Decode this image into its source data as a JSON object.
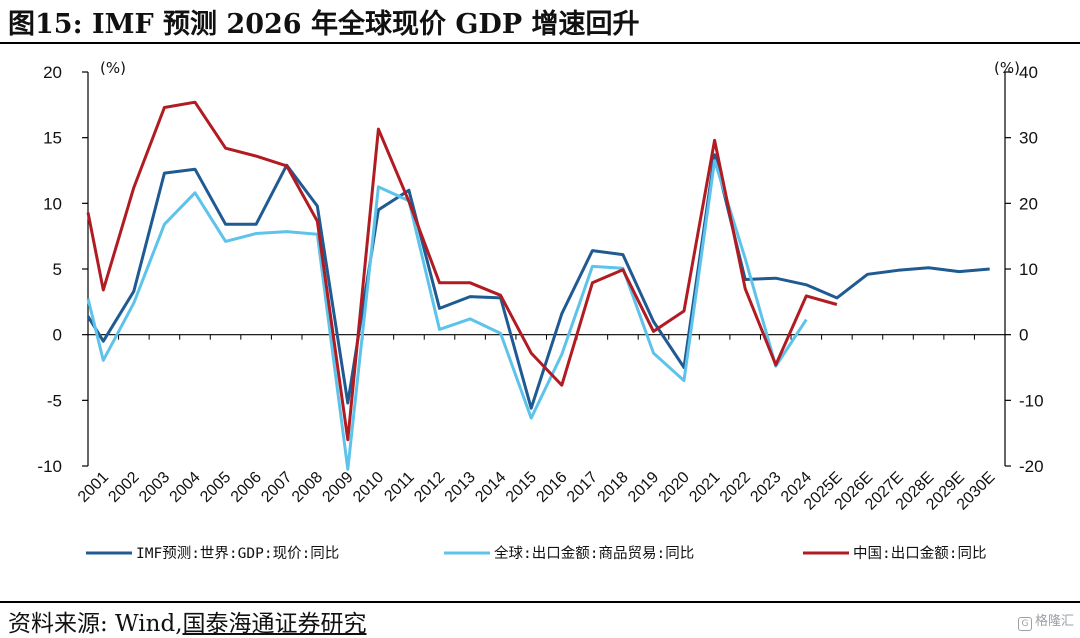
{
  "title": "图15:  IMF 预测 2026 年全球现价 GDP 增速回升",
  "source": {
    "prefix": "资料来源:  Wind,",
    "org": "国泰海通证券研究"
  },
  "watermark": "格隆汇",
  "colors": {
    "imf": "#1f5a92",
    "global": "#5ec3ea",
    "china": "#b01c22"
  },
  "chart_data": {
    "type": "line",
    "x": [
      "2001",
      "2002",
      "2003",
      "2004",
      "2005",
      "2006",
      "2007",
      "2008",
      "2009",
      "2010",
      "2011",
      "2012",
      "2013",
      "2014",
      "2015",
      "2016",
      "2017",
      "2018",
      "2019",
      "2020",
      "2021",
      "2022",
      "2023",
      "2024",
      "2025E",
      "2026E",
      "2027E",
      "2028E",
      "2029E",
      "2030E"
    ],
    "left_axis": {
      "label": "(%)",
      "ylim": [
        -10,
        20
      ],
      "ticks": [
        -10,
        -5,
        0,
        5,
        10,
        15,
        20
      ]
    },
    "right_axis": {
      "label": "(%)",
      "ylim": [
        -20,
        40
      ],
      "ticks": [
        -20,
        -10,
        0,
        10,
        20,
        30,
        40
      ]
    },
    "series": [
      {
        "name": "IMF预测:世界:GDP:现价:同比",
        "axis": "left",
        "color": "#1f5a92",
        "values": [
          -0.5,
          3.3,
          12.3,
          12.6,
          8.4,
          8.4,
          12.9,
          9.8,
          -5.2,
          9.5,
          11.0,
          2.0,
          2.9,
          2.8,
          -5.6,
          1.6,
          6.4,
          6.1,
          1.0,
          -2.5,
          13.7,
          4.2,
          4.3,
          3.8,
          2.8,
          4.6,
          4.9,
          5.1,
          4.8,
          5.0
        ],
        "x_offset_pts": [
          {
            "x": "2001",
            "at_start": 1.4
          }
        ]
      },
      {
        "name": "全球:出口金额:商品贸易:同比",
        "axis": "right",
        "color": "#5ec3ea",
        "values": [
          -3.9,
          4.8,
          16.8,
          21.6,
          14.2,
          15.4,
          15.7,
          15.3,
          -20.5,
          22.5,
          20.4,
          0.8,
          2.4,
          0.2,
          -12.7,
          -3.0,
          10.4,
          10.1,
          -2.8,
          -7.0,
          26.5,
          11.6,
          -4.8,
          2.3,
          null,
          null,
          null,
          null,
          null,
          null
        ],
        "start_value": 5.5
      },
      {
        "name": "中国:出口金额:同比",
        "axis": "right",
        "color": "#b01c22",
        "values": [
          6.8,
          22.4,
          34.6,
          35.4,
          28.4,
          27.2,
          25.7,
          17.3,
          -16.0,
          31.3,
          20.3,
          7.9,
          7.9,
          6.0,
          -2.8,
          -7.7,
          7.9,
          9.9,
          0.5,
          3.6,
          29.6,
          7.0,
          -4.6,
          5.9,
          4.6,
          null,
          null,
          null,
          null,
          null
        ],
        "start_value": 18.6
      }
    ],
    "legend_position": "bottom"
  }
}
